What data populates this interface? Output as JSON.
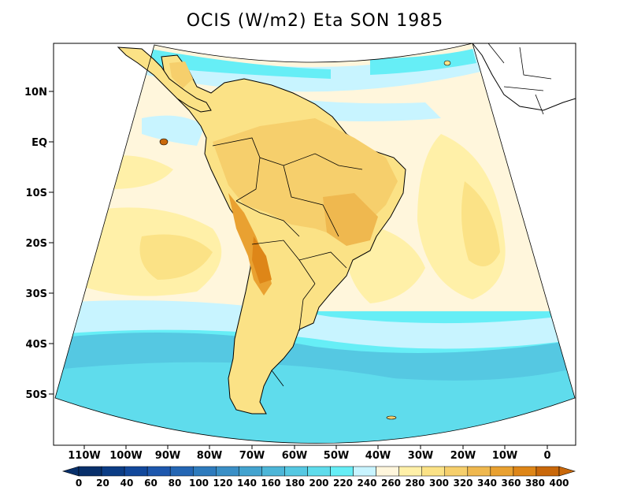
{
  "title": "OCIS (W/m2) Eta SON 1985",
  "lat_labels": [
    "10N",
    "EQ",
    "10S",
    "20S",
    "30S",
    "40S",
    "50S"
  ],
  "lon_labels": [
    "110W",
    "100W",
    "90W",
    "80W",
    "70W",
    "60W",
    "50W",
    "40W",
    "30W",
    "20W",
    "10W",
    "0"
  ],
  "colorbar": {
    "tick_labels": [
      "0",
      "20",
      "40",
      "60",
      "80",
      "100",
      "120",
      "140",
      "160",
      "180",
      "200",
      "220",
      "240",
      "260",
      "280",
      "300",
      "320",
      "340",
      "360",
      "380",
      "400"
    ],
    "colors": [
      "#08306b",
      "#0b3c85",
      "#12489b",
      "#1d57ad",
      "#2466b4",
      "#2e7bbd",
      "#3a8fc6",
      "#43a3cf",
      "#4db6d8",
      "#55c8e2",
      "#5fdcec",
      "#66eef6",
      "#c8f4ff",
      "#fff6dc",
      "#fff0a8",
      "#fbe286",
      "#f6cf6c",
      "#efb84f",
      "#e9a131",
      "#de8618",
      "#c9680a"
    ]
  }
}
